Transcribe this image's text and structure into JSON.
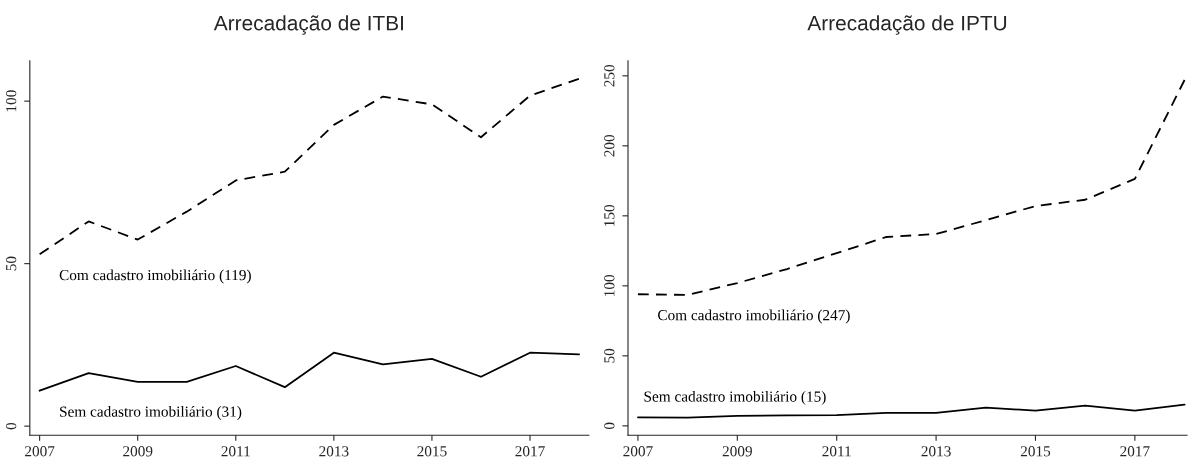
{
  "chart_data": [
    {
      "type": "line",
      "title": "Arrecadação de ITBI",
      "x": [
        2007,
        2008,
        2009,
        2010,
        2011,
        2012,
        2013,
        2014,
        2015,
        2016,
        2017,
        2018
      ],
      "series": [
        {
          "name": "Com cadastro imobiliário (119)",
          "color": "#000000",
          "line_style": "dashed",
          "values": [
            52.9,
            63,
            57.4,
            66,
            75.6,
            78.3,
            92.7,
            101.4,
            99,
            88.9,
            101.7,
            106.9
          ]
        },
        {
          "name": "Sem cadastro imobiliário (31)",
          "color": "#000000",
          "line_style": "solid",
          "values": [
            10.9,
            16.3,
            13.6,
            13.6,
            18.5,
            12,
            22.6,
            19,
            20.7,
            15.2,
            22.6,
            22.1
          ]
        }
      ],
      "xlim": [
        2006.8,
        2018.2
      ],
      "xticks": [
        2007,
        2009,
        2011,
        2013,
        2015,
        2017
      ],
      "ylim": [
        -2.8,
        112.4
      ],
      "yticks": [
        0,
        50,
        100
      ],
      "grid": false
    },
    {
      "type": "line",
      "title": "Arrecadação de IPTU",
      "x": [
        2007,
        2008,
        2009,
        2010,
        2011,
        2012,
        2013,
        2014,
        2015,
        2016,
        2017,
        2018
      ],
      "series": [
        {
          "name": "Com cadastro imobiliário (247)",
          "color": "#000000",
          "line_style": "dashed",
          "values": [
            94,
            93.5,
            102,
            112,
            123.4,
            134.9,
            137,
            146.9,
            157,
            161.5,
            176.4,
            247
          ]
        },
        {
          "name": "Sem cadastro imobiliário (15)",
          "color": "#000000",
          "line_style": "solid",
          "values": [
            6.1,
            5.9,
            7.2,
            7.5,
            7.7,
            9.3,
            9.3,
            13,
            10.9,
            14.4,
            10.9,
            15.2
          ]
        }
      ],
      "xlim": [
        2006.8,
        2018.05
      ],
      "xticks": [
        2007,
        2009,
        2011,
        2013,
        2015,
        2017
      ],
      "ylim": [
        -6.7,
        260.7
      ],
      "yticks": [
        0,
        50,
        100,
        150,
        200,
        250
      ],
      "grid": false
    }
  ]
}
